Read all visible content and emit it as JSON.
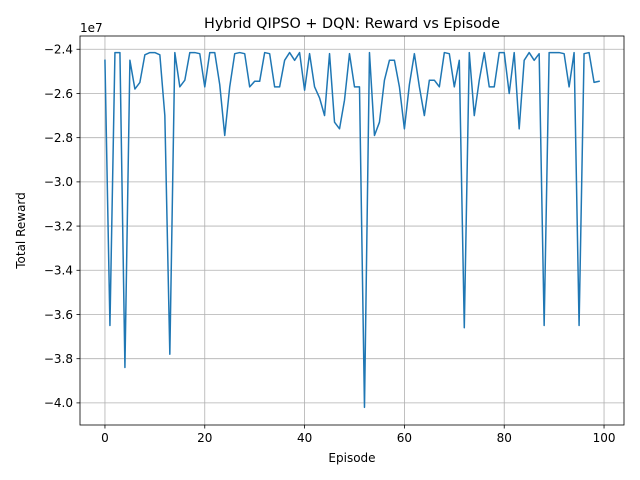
{
  "chart_data": {
    "type": "line",
    "title": "Hybrid QIPSO + DQN: Reward vs Episode",
    "xlabel": "Episode",
    "ylabel": "Total Reward",
    "y_offset_label": "1e7",
    "xlim": [
      -5,
      104
    ],
    "ylim": [
      -41000000,
      -23400000
    ],
    "x_ticks": [
      0,
      20,
      40,
      60,
      80,
      100
    ],
    "x_tick_labels": [
      "0",
      "20",
      "40",
      "60",
      "80",
      "100"
    ],
    "y_ticks": [
      -40000000,
      -38000000,
      -36000000,
      -34000000,
      -32000000,
      -30000000,
      -28000000,
      -26000000,
      -24000000
    ],
    "y_tick_labels": [
      "−4.0",
      "−3.8",
      "−3.6",
      "−3.4",
      "−3.2",
      "−3.0",
      "−2.8",
      "−2.6",
      "−2.4"
    ],
    "grid": true,
    "series_color": "#1f77b4",
    "x": [
      0,
      1,
      2,
      3,
      4,
      5,
      6,
      7,
      8,
      9,
      10,
      11,
      12,
      13,
      14,
      15,
      16,
      17,
      18,
      19,
      20,
      21,
      22,
      23,
      24,
      25,
      26,
      27,
      28,
      29,
      30,
      31,
      32,
      33,
      34,
      35,
      36,
      37,
      38,
      39,
      40,
      41,
      42,
      43,
      44,
      45,
      46,
      47,
      48,
      49,
      50,
      51,
      52,
      53,
      54,
      55,
      56,
      57,
      58,
      59,
      60,
      61,
      62,
      63,
      64,
      65,
      66,
      67,
      68,
      69,
      70,
      71,
      72,
      73,
      74,
      75,
      76,
      77,
      78,
      79,
      80,
      81,
      82,
      83,
      84,
      85,
      86,
      87,
      88,
      89,
      90,
      91,
      92,
      93,
      94,
      95,
      96,
      97,
      98,
      99
    ],
    "y": [
      -24500000,
      -36500000,
      -24150000,
      -24150000,
      -38400000,
      -24500000,
      -25800000,
      -25500000,
      -24250000,
      -24150000,
      -24150000,
      -24250000,
      -27000000,
      -37800000,
      -24150000,
      -25700000,
      -25400000,
      -24150000,
      -24150000,
      -24200000,
      -25700000,
      -24150000,
      -24150000,
      -25600000,
      -27900000,
      -25700000,
      -24200000,
      -24150000,
      -24200000,
      -25700000,
      -25450000,
      -25450000,
      -24150000,
      -24200000,
      -25700000,
      -25700000,
      -24500000,
      -24150000,
      -24500000,
      -24150000,
      -25850000,
      -24200000,
      -25700000,
      -26200000,
      -27000000,
      -24200000,
      -27300000,
      -27600000,
      -26300000,
      -24200000,
      -25700000,
      -25700000,
      -40200000,
      -24150000,
      -27900000,
      -27300000,
      -25400000,
      -24500000,
      -24500000,
      -25700000,
      -27600000,
      -25600000,
      -24200000,
      -25700000,
      -27000000,
      -25400000,
      -25400000,
      -25700000,
      -24150000,
      -24200000,
      -25700000,
      -24500000,
      -36600000,
      -24150000,
      -27000000,
      -25400000,
      -24150000,
      -25700000,
      -25700000,
      -24150000,
      -24150000,
      -26000000,
      -24150000,
      -27600000,
      -24500000,
      -24150000,
      -24500000,
      -24200000,
      -36500000,
      -24150000,
      -24150000,
      -24150000,
      -24200000,
      -25700000,
      -24150000,
      -36500000,
      -24200000,
      -24150000,
      -25500000,
      -25450000
    ]
  }
}
